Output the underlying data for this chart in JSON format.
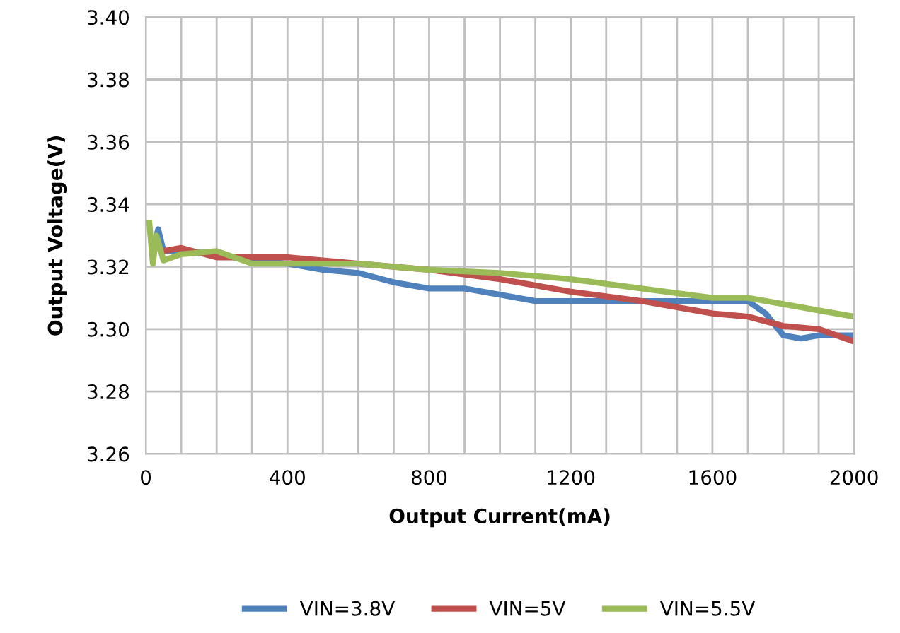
{
  "chart_data": {
    "type": "line",
    "xlabel": "Output Current(mA)",
    "ylabel": "Output Voltage(V)",
    "xlim": [
      0,
      2000
    ],
    "ylim": [
      3.26,
      3.4
    ],
    "xticks": [
      0,
      {
        "value": 100,
        "label": null
      },
      {
        "value": 200,
        "label": null
      },
      {
        "value": 300,
        "label": null
      },
      400,
      {
        "value": 500,
        "label": null
      },
      {
        "value": 600,
        "label": null
      },
      {
        "value": 700,
        "label": null
      },
      800,
      {
        "value": 900,
        "label": null
      },
      {
        "value": 1000,
        "label": null
      },
      {
        "value": 1100,
        "label": null
      },
      1200,
      {
        "value": 1300,
        "label": null
      },
      {
        "value": 1400,
        "label": null
      },
      {
        "value": 1500,
        "label": null
      },
      1600,
      {
        "value": 1700,
        "label": null
      },
      {
        "value": 1800,
        "label": null
      },
      {
        "value": 1900,
        "label": null
      },
      2000
    ],
    "yticks": [
      {
        "value": 3.26,
        "label": "3.26"
      },
      {
        "value": 3.28,
        "label": "3.28"
      },
      {
        "value": 3.3,
        "label": "3.30"
      },
      {
        "value": 3.32,
        "label": "3.32"
      },
      {
        "value": 3.34,
        "label": "3.34"
      },
      {
        "value": 3.36,
        "label": "3.36"
      },
      {
        "value": 3.38,
        "label": "3.38"
      },
      {
        "value": 3.4,
        "label": "3.40"
      }
    ],
    "grid": true,
    "legend": "bottom",
    "marker": "none",
    "line_style": "solid",
    "series": [
      {
        "name": "VIN=3.8V",
        "color": "#4f81bd",
        "x": [
          20,
          35,
          50,
          100,
          200,
          300,
          400,
          500,
          600,
          700,
          800,
          900,
          1000,
          1100,
          1200,
          1400,
          1600,
          1700,
          1750,
          1800,
          1850,
          1900,
          2000
        ],
        "values": [
          3.325,
          3.332,
          3.325,
          3.325,
          3.324,
          3.322,
          3.321,
          3.319,
          3.318,
          3.315,
          3.313,
          3.313,
          3.311,
          3.309,
          3.309,
          3.309,
          3.309,
          3.309,
          3.305,
          3.298,
          3.297,
          3.298,
          3.298
        ]
      },
      {
        "name": "VIN=5V",
        "color": "#c0504d",
        "x": [
          20,
          50,
          100,
          200,
          400,
          600,
          800,
          1000,
          1200,
          1400,
          1600,
          1700,
          1800,
          1900,
          2000
        ],
        "values": [
          3.327,
          3.325,
          3.326,
          3.323,
          3.323,
          3.321,
          3.319,
          3.316,
          3.312,
          3.309,
          3.305,
          3.304,
          3.301,
          3.3,
          3.296
        ]
      },
      {
        "name": "VIN=5.5V",
        "color": "#9bbb59",
        "x": [
          10,
          20,
          30,
          50,
          100,
          200,
          300,
          400,
          600,
          800,
          1000,
          1200,
          1400,
          1600,
          1700,
          1800,
          1900,
          2000
        ],
        "values": [
          3.334,
          3.321,
          3.33,
          3.322,
          3.324,
          3.325,
          3.321,
          3.321,
          3.321,
          3.319,
          3.318,
          3.316,
          3.313,
          3.31,
          3.31,
          3.308,
          3.306,
          3.304
        ]
      }
    ]
  }
}
